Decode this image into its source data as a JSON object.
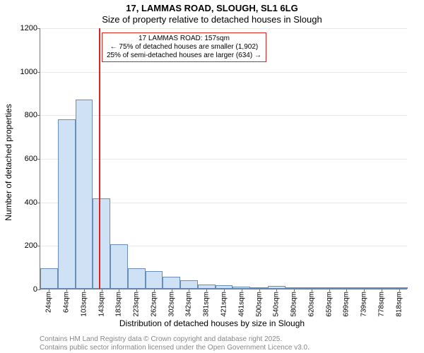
{
  "title": "17, LAMMAS ROAD, SLOUGH, SL1 6LG",
  "subtitle": "Size of property relative to detached houses in Slough",
  "ylabel": "Number of detached properties",
  "xlabel": "Distribution of detached houses by size in Slough",
  "footer1": "Contains HM Land Registry data © Crown copyright and database right 2025.",
  "footer2": "Contains public sector information licensed under the Open Government Licence v3.0.",
  "chart": {
    "type": "histogram",
    "background_color": "#ffffff",
    "grid_color": "#e8e8e8",
    "axis_color": "#777777",
    "bar_fill": "#cfe1f5",
    "bar_border": "#6a8cb8",
    "ref_line_color": "#d22222",
    "callout_border": "#d22222",
    "ylim": [
      0,
      1200
    ],
    "ytick_step": 200,
    "yticks": [
      0,
      200,
      400,
      600,
      800,
      1000,
      1200
    ],
    "xtick_labels": [
      "24sqm",
      "64sqm",
      "103sqm",
      "143sqm",
      "183sqm",
      "223sqm",
      "262sqm",
      "302sqm",
      "342sqm",
      "381sqm",
      "421sqm",
      "461sqm",
      "500sqm",
      "540sqm",
      "580sqm",
      "620sqm",
      "659sqm",
      "699sqm",
      "739sqm",
      "778sqm",
      "818sqm"
    ],
    "values": [
      95,
      780,
      870,
      415,
      205,
      95,
      80,
      55,
      40,
      20,
      15,
      10,
      8,
      12,
      8,
      6,
      5,
      4,
      3,
      2,
      2
    ],
    "reference": {
      "bin_index_boundary": 4,
      "callout_line1": "17 LAMMAS ROAD: 157sqm",
      "callout_line2": "← 75% of detached houses are smaller (1,902)",
      "callout_line3": "25% of semi-detached houses are larger (634) →"
    },
    "title_fontsize": 13,
    "label_fontsize": 12,
    "tick_fontsize": 10
  }
}
